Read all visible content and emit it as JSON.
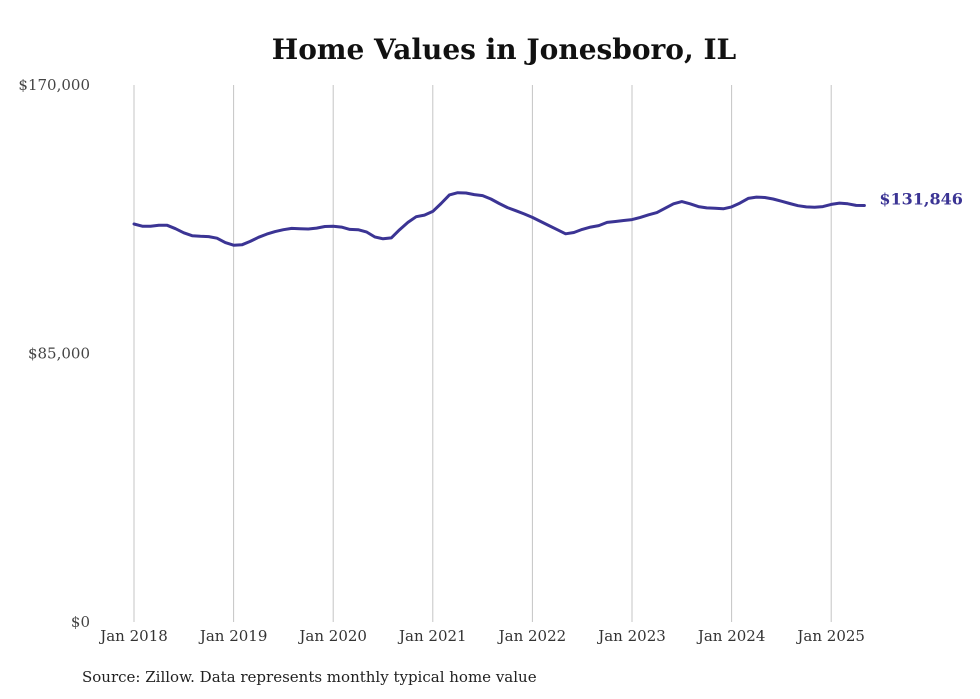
{
  "chart_data": {
    "type": "line",
    "title": "Home Values in Jonesboro, IL",
    "xlabel": "",
    "ylabel": "",
    "ylim": [
      0,
      170000
    ],
    "yticks": [
      0,
      85000,
      170000
    ],
    "ytick_labels": [
      "$0",
      "$85,000",
      "$170,000"
    ],
    "xticks": [
      "Jan 2018",
      "Jan 2019",
      "Jan 2020",
      "Jan 2021",
      "Jan 2022",
      "Jan 2023",
      "Jan 2024",
      "Jan 2025"
    ],
    "grid": "vertical",
    "line_color": "#3b3494",
    "end_label": "$131,846",
    "series": [
      {
        "values": [
          126000,
          125300,
          125300,
          125600,
          125600,
          124500,
          123200,
          122300,
          122100,
          122000,
          121500,
          120100,
          119300,
          119400,
          120500,
          121800,
          122800,
          123600,
          124200,
          124600,
          124500,
          124400,
          124700,
          125200,
          125300,
          125000,
          124300,
          124200,
          123500,
          121900,
          121300,
          121600,
          124200,
          126500,
          128300,
          128800,
          130000,
          132500,
          135200,
          135900,
          135800,
          135300,
          135000,
          133900,
          132500,
          131200,
          130200,
          129200,
          128100,
          126800,
          125500,
          124200,
          122900,
          123300,
          124300,
          125000,
          125500,
          126500,
          126800,
          127100,
          127400,
          128100,
          128900,
          129600,
          131000,
          132400,
          133100,
          132400,
          131500,
          131100,
          131000,
          130800,
          131400,
          132600,
          134100,
          134500,
          134400,
          133900,
          133200,
          132500,
          131800,
          131400,
          131300,
          131500,
          132200,
          132600,
          132400,
          131900,
          131846
        ]
      }
    ]
  },
  "source": "Source: Zillow. Data represents monthly typical home value"
}
